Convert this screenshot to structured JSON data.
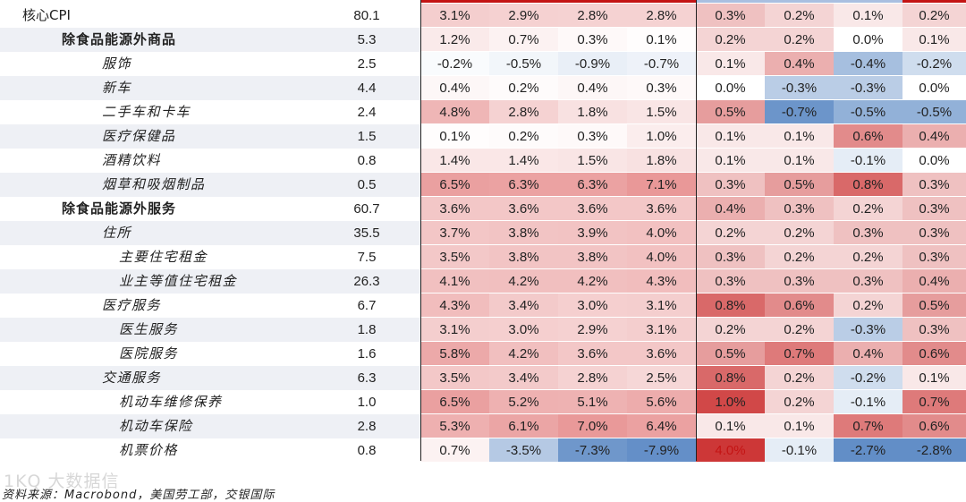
{
  "rows": [
    {
      "name": "核心CPI",
      "level": 0,
      "weight": "80.1",
      "values": [
        "3.1%",
        "2.9%",
        "2.8%",
        "2.8%",
        "0.3%",
        "0.2%",
        "0.1%",
        "0.2%"
      ]
    },
    {
      "name": "除食品能源外商品",
      "level": 1,
      "weight": "5.3",
      "values": [
        "1.2%",
        "0.7%",
        "0.3%",
        "0.1%",
        "0.2%",
        "0.2%",
        "0.0%",
        "0.1%"
      ]
    },
    {
      "name": "服饰",
      "level": 2,
      "weight": "2.5",
      "values": [
        "-0.2%",
        "-0.5%",
        "-0.9%",
        "-0.7%",
        "0.1%",
        "0.4%",
        "-0.4%",
        "-0.2%"
      ]
    },
    {
      "name": "新车",
      "level": 2,
      "weight": "4.4",
      "values": [
        "0.4%",
        "0.2%",
        "0.4%",
        "0.3%",
        "0.0%",
        "-0.3%",
        "-0.3%",
        "0.0%"
      ]
    },
    {
      "name": "二手车和卡车",
      "level": 2,
      "weight": "2.4",
      "values": [
        "4.8%",
        "2.8%",
        "1.8%",
        "1.5%",
        "0.5%",
        "-0.7%",
        "-0.5%",
        "-0.5%"
      ]
    },
    {
      "name": "医疗保健品",
      "level": 2,
      "weight": "1.5",
      "values": [
        "0.1%",
        "0.2%",
        "0.3%",
        "1.0%",
        "0.1%",
        "0.1%",
        "0.6%",
        "0.4%"
      ]
    },
    {
      "name": "酒精饮料",
      "level": 2,
      "weight": "0.8",
      "values": [
        "1.4%",
        "1.4%",
        "1.5%",
        "1.8%",
        "0.1%",
        "0.1%",
        "-0.1%",
        "0.0%"
      ]
    },
    {
      "name": "烟草和吸烟制品",
      "level": 2,
      "weight": "0.5",
      "values": [
        "6.5%",
        "6.3%",
        "6.3%",
        "7.1%",
        "0.3%",
        "0.5%",
        "0.8%",
        "0.3%"
      ]
    },
    {
      "name": "除食品能源外服务",
      "level": 1,
      "weight": "60.7",
      "values": [
        "3.6%",
        "3.6%",
        "3.6%",
        "3.6%",
        "0.4%",
        "0.3%",
        "0.2%",
        "0.3%"
      ]
    },
    {
      "name": "住所",
      "level": 2,
      "weight": "35.5",
      "values": [
        "3.7%",
        "3.8%",
        "3.9%",
        "4.0%",
        "0.2%",
        "0.2%",
        "0.3%",
        "0.3%"
      ]
    },
    {
      "name": "主要住宅租金",
      "level": 3,
      "weight": "7.5",
      "values": [
        "3.5%",
        "3.8%",
        "3.8%",
        "4.0%",
        "0.3%",
        "0.2%",
        "0.2%",
        "0.3%"
      ]
    },
    {
      "name": "业主等值住宅租金",
      "level": 3,
      "weight": "26.3",
      "values": [
        "4.1%",
        "4.2%",
        "4.2%",
        "4.3%",
        "0.3%",
        "0.3%",
        "0.3%",
        "0.4%"
      ]
    },
    {
      "name": "医疗服务",
      "level": 2,
      "weight": "6.7",
      "values": [
        "4.3%",
        "3.4%",
        "3.0%",
        "3.1%",
        "0.8%",
        "0.6%",
        "0.2%",
        "0.5%"
      ]
    },
    {
      "name": "医生服务",
      "level": 3,
      "weight": "1.8",
      "values": [
        "3.1%",
        "3.0%",
        "2.9%",
        "3.1%",
        "0.2%",
        "0.2%",
        "-0.3%",
        "0.3%"
      ]
    },
    {
      "name": "医院服务",
      "level": 3,
      "weight": "1.6",
      "values": [
        "5.8%",
        "4.2%",
        "3.6%",
        "3.6%",
        "0.5%",
        "0.7%",
        "0.4%",
        "0.6%"
      ]
    },
    {
      "name": "交通服务",
      "level": 2,
      "weight": "6.3",
      "values": [
        "3.5%",
        "3.4%",
        "2.8%",
        "2.5%",
        "0.8%",
        "0.2%",
        "-0.2%",
        "0.1%"
      ]
    },
    {
      "name": "机动车维修保养",
      "level": 3,
      "weight": "1.0",
      "values": [
        "6.5%",
        "5.2%",
        "5.1%",
        "5.6%",
        "1.0%",
        "0.2%",
        "-0.1%",
        "0.7%"
      ]
    },
    {
      "name": "机动车保险",
      "level": 3,
      "weight": "2.8",
      "values": [
        "5.3%",
        "6.1%",
        "7.0%",
        "6.4%",
        "0.1%",
        "0.1%",
        "0.7%",
        "0.6%"
      ]
    },
    {
      "name": "机票价格",
      "level": 3,
      "weight": "0.8",
      "values": [
        "0.7%",
        "-3.5%",
        "-7.3%",
        "-7.9%",
        "4.0%",
        "-0.1%",
        "-2.7%",
        "-2.8%"
      ]
    }
  ],
  "colors": {
    "yoy_max_red": "#e07070",
    "mom_max_red": "#c41414",
    "max_blue": "#5a88c4",
    "header_bar_red": "#c41414",
    "header_bar_blue": "#a9bfe0"
  },
  "footer": "资料来源：Macrobond，美国劳工部，交银国际",
  "watermark": "1KQ 大数据信"
}
